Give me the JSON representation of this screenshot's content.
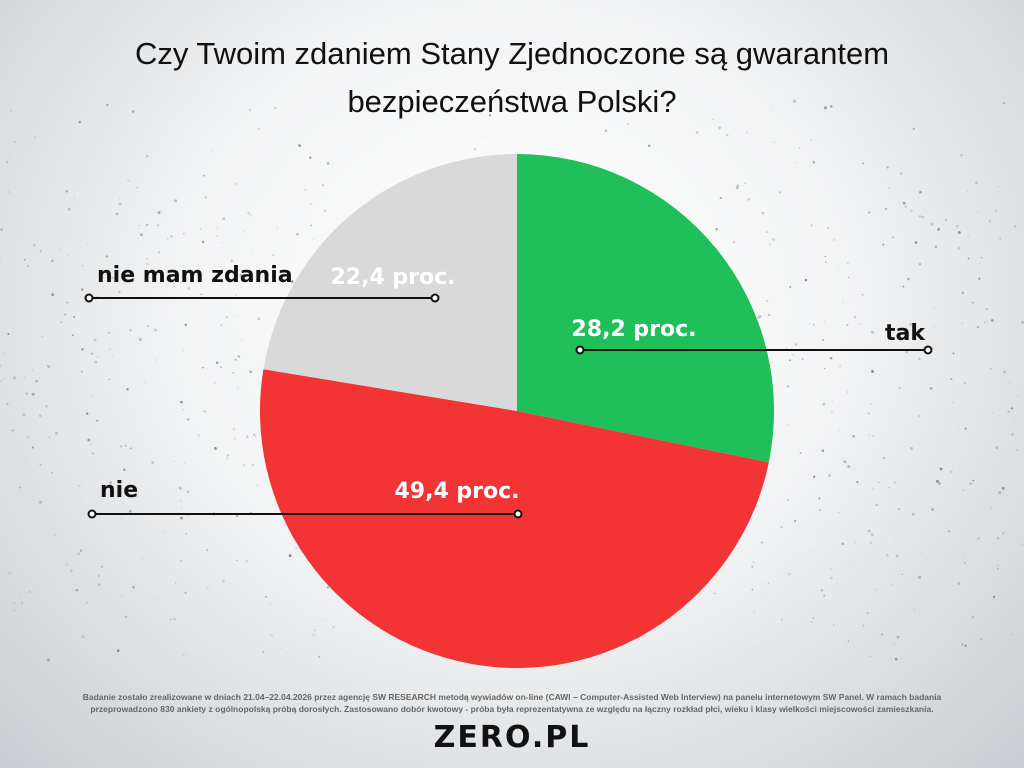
{
  "title": {
    "line1": "Czy Twoim zdaniem Stany Zjednoczone są gwarantem",
    "line2": "bezpieczeństwa Polski?"
  },
  "chart_data": {
    "type": "pie",
    "title": "Czy Twoim zdaniem Stany Zjednoczone są gwarantem bezpieczeństwa Polski?",
    "slices": [
      {
        "category": "tak",
        "value": 28.2,
        "value_label": "28,2 proc.",
        "color": "#1fbf5a"
      },
      {
        "category": "nie",
        "value": 49.4,
        "value_label": "49,4 proc.",
        "color": "#f23434"
      },
      {
        "category": "nie mam zdania",
        "value": 22.4,
        "value_label": "22,4 proc.",
        "color": "#d9d9d9"
      }
    ]
  },
  "footnote": {
    "line1": "Badanie zostało zrealizowane w dniach 21.04–22.04.2026 przez agencję SW RESEARCH metodą wywiadów on-line (CAWI – Computer-Assisted Web Interview) na panelu internetowym SW Panel. W ramach badania",
    "line2": "przeprowadzono 830 ankiety z ogólnopolską próbą dorosłych. Zastosowano dobór kwotowy - próba była reprezentatywna ze względu na łączny rozkład płci, wieku i klasy wielkości miejscowości zamieszkania."
  },
  "logo": {
    "text": "ZERO.PL"
  }
}
